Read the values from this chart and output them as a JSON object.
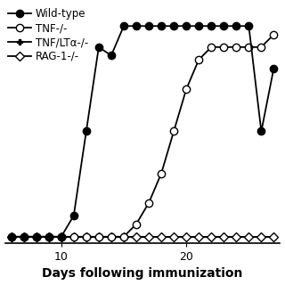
{
  "title": "",
  "xlabel": "Days following immunization",
  "ylabel": "",
  "background_color": "#ffffff",
  "xlim": [
    5.5,
    27.5
  ],
  "ylim": [
    -0.15,
    5.5
  ],
  "xticks": [
    10,
    20
  ],
  "yticks": [
    0,
    1,
    2,
    3,
    4,
    5
  ],
  "wildtype": {
    "x": [
      6,
      7,
      8,
      9,
      10,
      11,
      12,
      13,
      14,
      15,
      16,
      17,
      18,
      19,
      20,
      21,
      22,
      23,
      24,
      25,
      26,
      27
    ],
    "y": [
      0,
      0,
      0,
      0,
      0,
      0.5,
      2.5,
      4.5,
      4.3,
      5.0,
      5.0,
      5.0,
      5.0,
      5.0,
      5.0,
      5.0,
      5.0,
      5.0,
      5.0,
      5.0,
      2.5,
      4.0
    ],
    "label": "Wild-type"
  },
  "tnf": {
    "x": [
      6,
      7,
      8,
      9,
      10,
      11,
      12,
      13,
      14,
      15,
      16,
      17,
      18,
      19,
      20,
      21,
      22,
      23,
      24,
      25,
      26,
      27
    ],
    "y": [
      0,
      0,
      0,
      0,
      0,
      0,
      0,
      0,
      0,
      0,
      0.3,
      0.8,
      1.5,
      2.5,
      3.5,
      4.2,
      4.5,
      4.5,
      4.5,
      4.5,
      4.5,
      4.8
    ],
    "label": "TNF-/-"
  },
  "tnf_lta": {
    "x": [
      6,
      7,
      8,
      9,
      10,
      11,
      12,
      13,
      14,
      15,
      16,
      17,
      18,
      19,
      20,
      21,
      22,
      23,
      24,
      25,
      26,
      27
    ],
    "y": [
      0,
      0,
      0,
      0,
      0,
      0,
      0,
      0,
      0,
      0,
      0,
      0,
      0,
      0,
      0,
      0,
      0,
      0,
      0,
      0,
      0,
      0
    ],
    "label": "TNF/LTα-/-"
  },
  "rag1": {
    "x": [
      6,
      7,
      8,
      9,
      10,
      11,
      12,
      13,
      14,
      15,
      16,
      17,
      18,
      19,
      20,
      21,
      22,
      23,
      24,
      25,
      26,
      27
    ],
    "y": [
      0,
      0,
      0,
      0,
      0,
      0,
      0,
      0,
      0,
      0,
      0,
      0,
      0,
      0,
      0,
      0,
      0,
      0,
      0,
      0,
      0,
      0
    ],
    "label": "RAG-1-/-"
  },
  "legend_fontsize": 8.5,
  "xlabel_fontsize": 10,
  "tick_fontsize": 9,
  "markersize_large": 6,
  "markersize_small": 5,
  "linewidth": 1.3
}
